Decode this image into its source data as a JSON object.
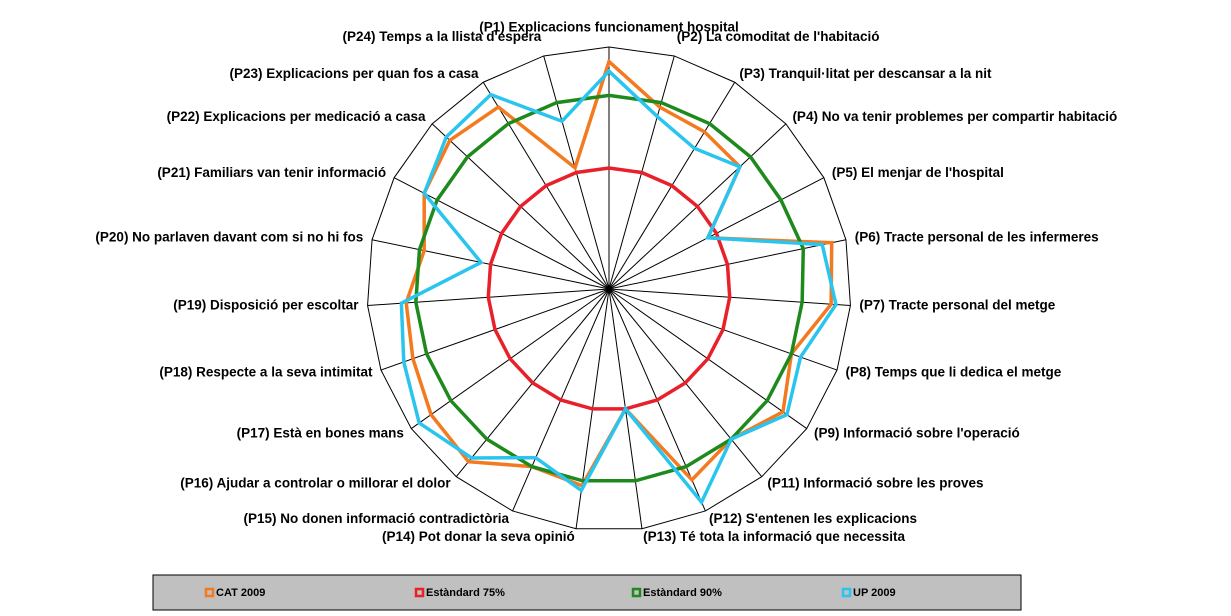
{
  "chart_data": {
    "type": "radar",
    "categories": [
      "(P1) Explicacions  funcionament hospital",
      "(P2) La comoditat de l'habitació",
      "(P3) Tranquil·litat per descansar a la nit",
      "(P4) No va tenir problemes per compartir habitació",
      "(P5) El menjar de l'hospital",
      "(P6) Tracte personal de les infermeres",
      "(P7) Tracte personal del metge",
      "(P8) Temps  que  li dedica el metge",
      "(P9) Informació sobre l'operació",
      "(P11) Informació sobre les proves",
      "(P12) S'entenen les explicacions",
      "(P13) Té tota la informació que necessita",
      "(P14) Pot donar  la seva opinió",
      "(P15) No donen informació contradictòria",
      "(P16) Ajudar a controlar o millorar el dolor",
      "(P17) Està en bones mans",
      "(P18) Respecte a la seva intimitat",
      "(P19) Disposició per escoltar",
      "(P20) No parlaven davant com si no hi fos",
      "(P21) Familiars van tenir informació",
      "(P22) Explicacions per medicació a casa",
      "(P23) Explicacions per quan fos a casa",
      "(P24) Temps a la llista d'espera"
    ],
    "ylim": [
      50,
      100
    ],
    "legend": "bottom",
    "series": [
      {
        "name": "CAT 2009",
        "color": "#f47a20",
        "values": [
          97,
          89,
          88,
          87,
          73,
          97,
          96,
          90,
          94,
          90,
          93,
          75,
          91,
          90,
          96,
          95,
          93,
          92,
          89,
          93,
          95,
          94,
          76
        ]
      },
      {
        "name": "Estàndard 75%",
        "color": "#e8202a",
        "values": [
          75,
          75,
          75,
          75,
          75,
          75,
          75,
          75,
          75,
          75,
          75,
          75,
          75,
          75,
          75,
          75,
          75,
          75,
          75,
          75,
          75,
          75,
          75
        ]
      },
      {
        "name": "Estàndard 90%",
        "color": "#1e8a1e",
        "values": [
          90,
          90,
          90,
          90,
          90,
          91,
          90,
          90,
          90,
          90,
          90,
          90,
          90,
          90,
          90,
          90,
          90,
          90,
          90,
          90,
          90,
          90,
          90
        ]
      },
      {
        "name": "UP 2009",
        "color": "#29c5ef",
        "values": [
          95,
          87,
          84,
          87,
          73,
          95,
          97,
          92,
          95,
          90,
          98,
          75,
          92,
          88,
          95,
          98,
          95,
          93,
          77,
          93,
          96,
          97,
          86
        ]
      }
    ]
  }
}
